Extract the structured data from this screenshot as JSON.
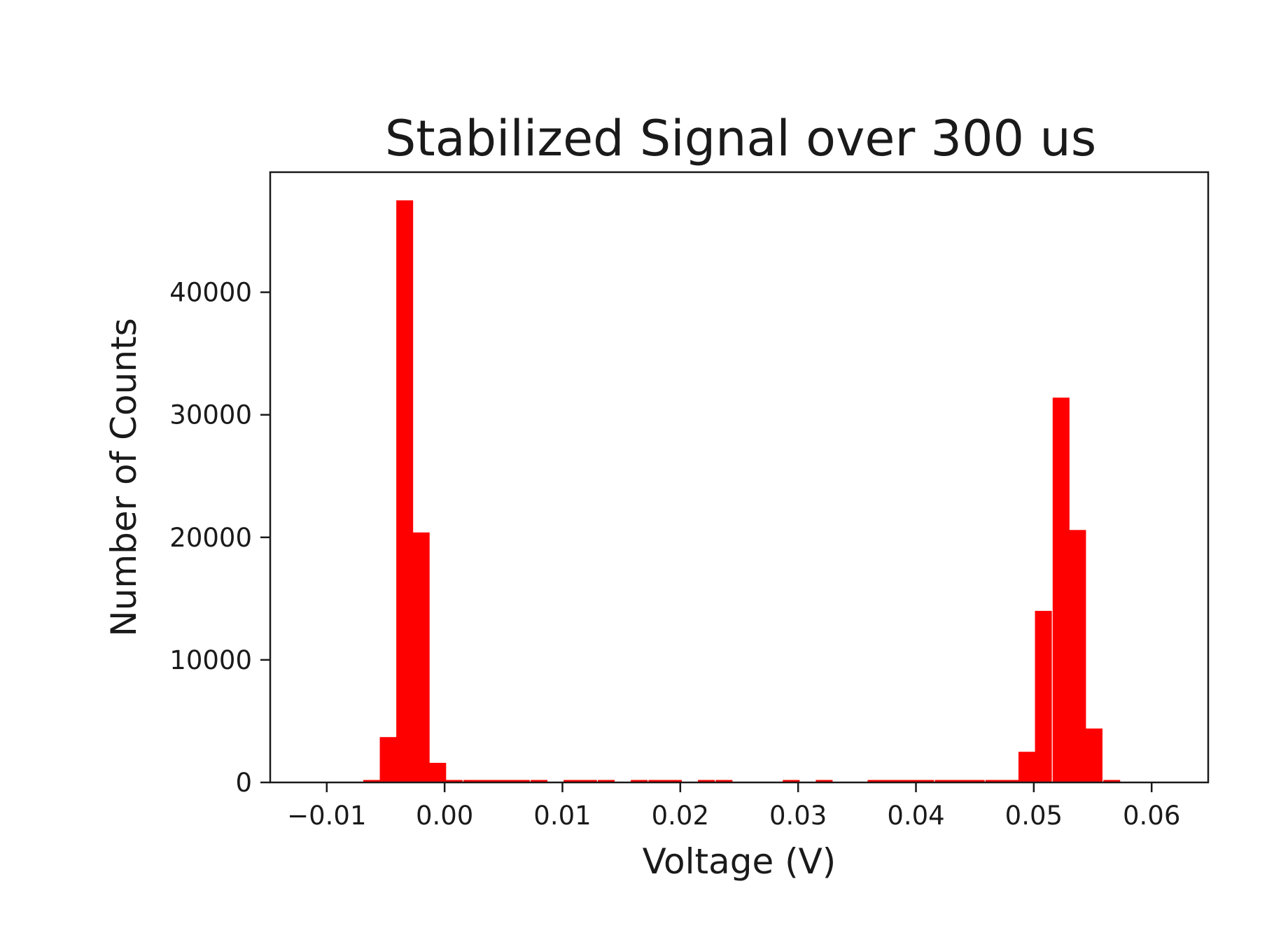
{
  "chart_data": {
    "type": "bar",
    "title": "Stabilized Signal over 300 us",
    "xlabel": "Voltage (V)",
    "ylabel": "Number of Counts",
    "xlim": [
      -0.0148,
      0.0648
    ],
    "ylim": [
      0,
      49800
    ],
    "x_ticks": [
      -0.01,
      0.0,
      0.01,
      0.02,
      0.03,
      0.04,
      0.05,
      0.06
    ],
    "x_tick_labels": [
      "−0.01",
      "0.00",
      "0.01",
      "0.02",
      "0.03",
      "0.04",
      "0.05",
      "0.06"
    ],
    "y_ticks": [
      0,
      10000,
      20000,
      30000,
      40000
    ],
    "y_tick_labels": [
      "0",
      "10000",
      "20000",
      "30000",
      "40000"
    ],
    "bar_color": "#ff0000",
    "grid": false,
    "bin_width": 0.0014286,
    "bins": [
      {
        "x0": -0.0069,
        "height": 200
      },
      {
        "x0": -0.0055,
        "height": 3700
      },
      {
        "x0": -0.0041,
        "height": 47500
      },
      {
        "x0": -0.0027,
        "height": 20400
      },
      {
        "x0": -0.0013,
        "height": 1600
      },
      {
        "x0": 0.0001,
        "height": 200
      },
      {
        "x0": 0.0016,
        "height": 200
      },
      {
        "x0": 0.003,
        "height": 200
      },
      {
        "x0": 0.0044,
        "height": 200
      },
      {
        "x0": 0.0058,
        "height": 200
      },
      {
        "x0": 0.0073,
        "height": 200
      },
      {
        "x0": 0.0101,
        "height": 200
      },
      {
        "x0": 0.0115,
        "height": 200
      },
      {
        "x0": 0.013,
        "height": 200
      },
      {
        "x0": 0.0158,
        "height": 200
      },
      {
        "x0": 0.0173,
        "height": 200
      },
      {
        "x0": 0.0187,
        "height": 200
      },
      {
        "x0": 0.0215,
        "height": 200
      },
      {
        "x0": 0.023,
        "height": 200
      },
      {
        "x0": 0.0287,
        "height": 200
      },
      {
        "x0": 0.0315,
        "height": 200
      },
      {
        "x0": 0.0359,
        "height": 200
      },
      {
        "x0": 0.0373,
        "height": 200
      },
      {
        "x0": 0.0387,
        "height": 200
      },
      {
        "x0": 0.0401,
        "height": 200
      },
      {
        "x0": 0.0416,
        "height": 200
      },
      {
        "x0": 0.043,
        "height": 200
      },
      {
        "x0": 0.0444,
        "height": 200
      },
      {
        "x0": 0.0459,
        "height": 200
      },
      {
        "x0": 0.0473,
        "height": 200
      },
      {
        "x0": 0.0487,
        "height": 2500
      },
      {
        "x0": 0.0501,
        "height": 14000
      },
      {
        "x0": 0.0516,
        "height": 31400
      },
      {
        "x0": 0.053,
        "height": 20600
      },
      {
        "x0": 0.0544,
        "height": 4400
      },
      {
        "x0": 0.0559,
        "height": 200
      }
    ]
  }
}
